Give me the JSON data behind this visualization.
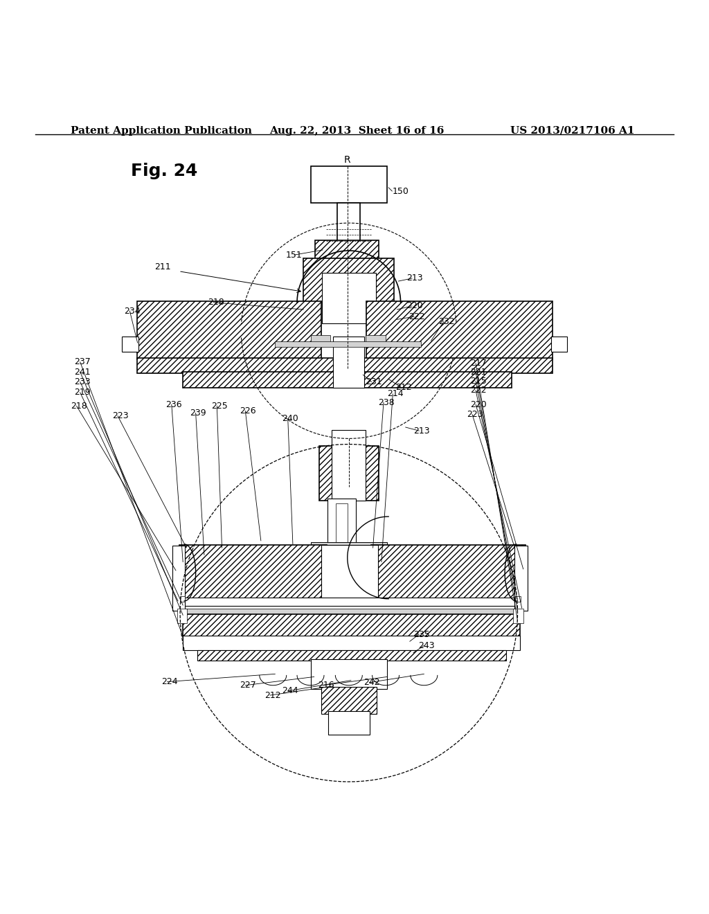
{
  "bg_color": "#ffffff",
  "line_color": "#000000",
  "header_text": "Patent Application Publication",
  "header_date": "Aug. 22, 2013  Sheet 16 of 16",
  "header_patent": "US 2013/0217106 A1",
  "fig_label": "Fig. 24",
  "title_fontsize": 11,
  "label_fontsize": 9,
  "fig_label_fontsize": 18
}
